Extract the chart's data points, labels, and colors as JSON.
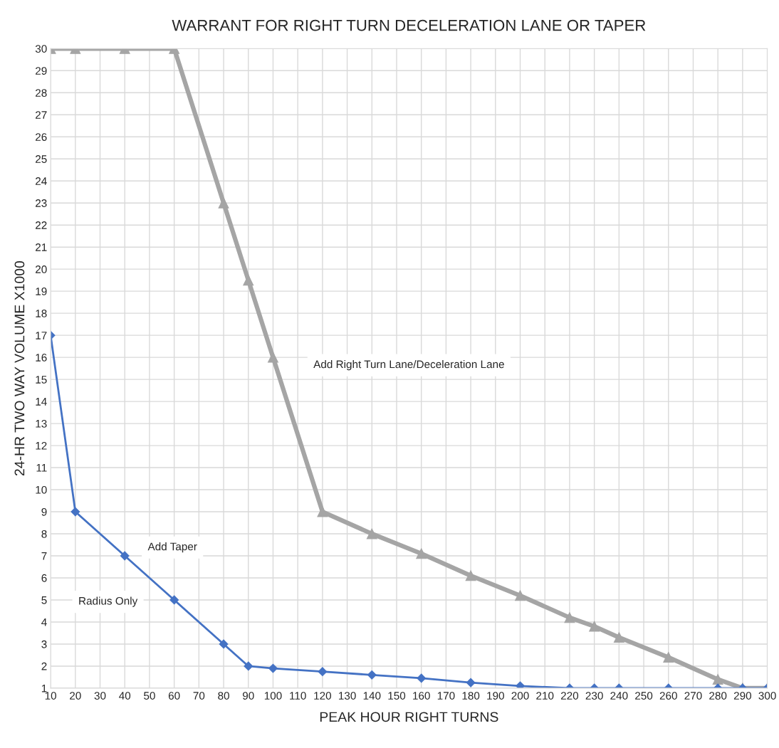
{
  "chart_data": {
    "type": "line",
    "title": "WARRANT FOR RIGHT TURN DECELERATION LANE OR TAPER",
    "xlabel": "PEAK HOUR RIGHT TURNS",
    "ylabel": "24-HR TWO WAY VOLUME X1000",
    "x": [
      10,
      20,
      40,
      60,
      80,
      90,
      100,
      120,
      140,
      160,
      180,
      200,
      220,
      230,
      240,
      260,
      280,
      290,
      300
    ],
    "series": [
      {
        "color": "#a5a5a5",
        "marker": "triangle",
        "values": [
          30,
          30,
          30,
          30,
          23,
          19.5,
          16,
          9,
          8,
          7.1,
          6.1,
          5.2,
          4.2,
          3.8,
          3.3,
          2.4,
          1.4,
          1,
          1
        ]
      },
      {
        "color": "#4472c4",
        "marker": "diamond",
        "values": [
          17,
          9,
          7,
          5,
          3,
          2,
          1.9,
          1.75,
          1.6,
          1.45,
          1.25,
          1.1,
          1,
          1,
          1,
          1,
          1,
          1,
          1
        ]
      }
    ],
    "xlim": [
      10,
      300
    ],
    "xticks": [
      10,
      20,
      30,
      40,
      50,
      60,
      70,
      80,
      90,
      100,
      110,
      120,
      130,
      140,
      150,
      160,
      170,
      180,
      190,
      200,
      210,
      220,
      230,
      240,
      250,
      260,
      270,
      280,
      290,
      300
    ],
    "ylim": [
      1,
      30
    ],
    "yticks": [
      1,
      2,
      3,
      4,
      5,
      6,
      7,
      8,
      9,
      10,
      11,
      12,
      13,
      14,
      15,
      16,
      17,
      18,
      19,
      20,
      21,
      22,
      23,
      24,
      25,
      26,
      27,
      28,
      29,
      30
    ],
    "grid": true,
    "annotations": [
      "Add Right Turn Lane/Deceleration Lane",
      "Add Taper",
      "Radius Only"
    ]
  }
}
